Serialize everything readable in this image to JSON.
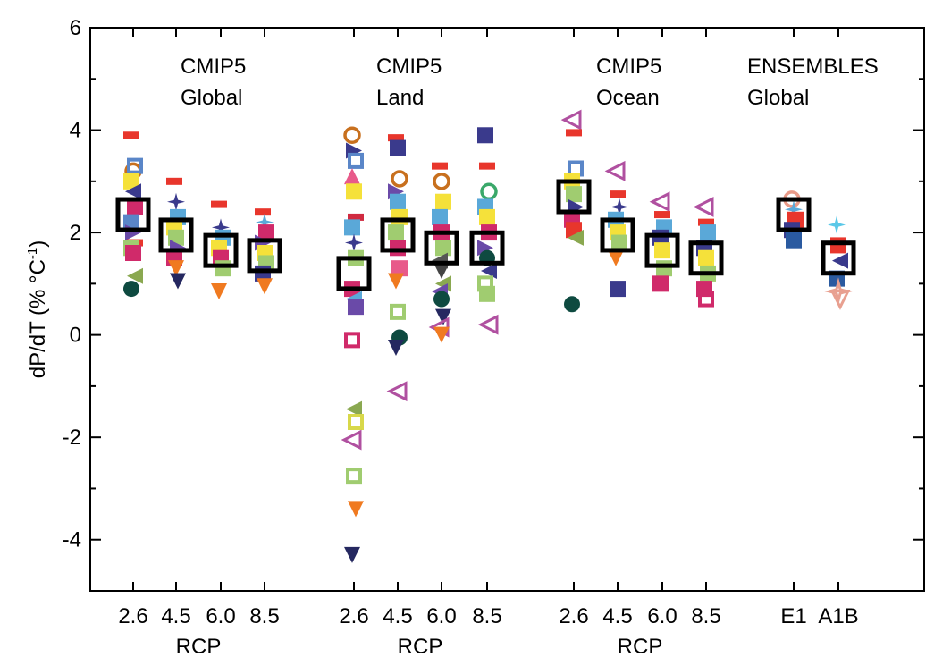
{
  "chart_data": {
    "type": "scatter",
    "ylabel": "dP/dT (% °C",
    "ylabel_sup": "-1",
    "ylabel_close": ")",
    "ylim": [
      -5,
      6
    ],
    "yticks": [
      {
        "v": 6,
        "label": "6"
      },
      {
        "v": 4,
        "label": "4"
      },
      {
        "v": 2,
        "label": "2"
      },
      {
        "v": 0,
        "label": "0"
      },
      {
        "v": -2,
        "label": "-2"
      },
      {
        "v": -4,
        "label": "-4"
      }
    ],
    "groups": [
      {
        "line1": "CMIP5",
        "line2": "Global",
        "axis_title": "RCP"
      },
      {
        "line1": "CMIP5",
        "line2": "Land",
        "axis_title": "RCP"
      },
      {
        "line1": "CMIP5",
        "line2": "Ocean",
        "axis_title": "RCP"
      },
      {
        "line1": "ENSEMBLES",
        "line2": "Global",
        "axis_title": ""
      }
    ],
    "categories": [
      {
        "label": "2.6",
        "group": 0
      },
      {
        "label": "4.5",
        "group": 0
      },
      {
        "label": "6.0",
        "group": 0
      },
      {
        "label": "8.5",
        "group": 0
      },
      {
        "label": "2.6",
        "group": 1
      },
      {
        "label": "4.5",
        "group": 1
      },
      {
        "label": "6.0",
        "group": 1
      },
      {
        "label": "8.5",
        "group": 1
      },
      {
        "label": "2.6",
        "group": 2
      },
      {
        "label": "4.5",
        "group": 2
      },
      {
        "label": "6.0",
        "group": 2
      },
      {
        "label": "8.5",
        "group": 2
      },
      {
        "label": "E1",
        "group": 3
      },
      {
        "label": "A1B",
        "group": 3
      }
    ],
    "ensemble_mean": [
      2.35,
      1.95,
      1.65,
      1.55,
      1.2,
      1.95,
      1.7,
      1.7,
      2.7,
      1.95,
      1.65,
      1.5,
      2.35,
      1.5
    ],
    "model_points": [
      [
        {
          "y": 3.9,
          "m": "dash",
          "c": "#e8362c"
        },
        {
          "y": 3.2,
          "m": "circle-open",
          "c": "#c8701e"
        },
        {
          "y": 3.3,
          "m": "square-open",
          "c": "#5a86c8"
        },
        {
          "y": 3.0,
          "m": "square",
          "c": "#f5e13a"
        },
        {
          "y": 2.8,
          "m": "tri-left",
          "c": "#3a3a8c"
        },
        {
          "y": 2.5,
          "m": "square",
          "c": "#d02a6a"
        },
        {
          "y": 2.2,
          "m": "square",
          "c": "#5a86c8"
        },
        {
          "y": 2.0,
          "m": "tri-right",
          "c": "#6a4aa8"
        },
        {
          "y": 1.8,
          "m": "dash",
          "c": "#e8362c"
        },
        {
          "y": 1.7,
          "m": "square",
          "c": "#a0cc70"
        },
        {
          "y": 1.6,
          "m": "square",
          "c": "#d02a6a"
        },
        {
          "y": 1.15,
          "m": "tri-left",
          "c": "#8aa850"
        },
        {
          "y": 0.9,
          "m": "circle",
          "c": "#0e4a40"
        }
      ],
      [
        {
          "y": 3.0,
          "m": "dash",
          "c": "#e8362c"
        },
        {
          "y": 2.6,
          "m": "star",
          "c": "#3a3a8c"
        },
        {
          "y": 2.3,
          "m": "square",
          "c": "#5aa8d8"
        },
        {
          "y": 2.1,
          "m": "square",
          "c": "#f5e13a"
        },
        {
          "y": 1.9,
          "m": "square",
          "c": "#a0cc70"
        },
        {
          "y": 1.7,
          "m": "tri-right",
          "c": "#6a4aa8"
        },
        {
          "y": 1.5,
          "m": "square",
          "c": "#d02a6a"
        },
        {
          "y": 1.3,
          "m": "tri-down",
          "c": "#f07a20"
        },
        {
          "y": 1.05,
          "m": "tri-down",
          "c": "#252860"
        }
      ],
      [
        {
          "y": 2.55,
          "m": "dash",
          "c": "#e8362c"
        },
        {
          "y": 2.1,
          "m": "star",
          "c": "#3a3a8c"
        },
        {
          "y": 1.9,
          "m": "square",
          "c": "#5aa8d8"
        },
        {
          "y": 1.7,
          "m": "square",
          "c": "#f5e13a"
        },
        {
          "y": 1.5,
          "m": "square",
          "c": "#d02a6a"
        },
        {
          "y": 1.3,
          "m": "square",
          "c": "#a0cc70"
        },
        {
          "y": 0.85,
          "m": "tri-down",
          "c": "#f07a20"
        }
      ],
      [
        {
          "y": 2.4,
          "m": "dash",
          "c": "#e8362c"
        },
        {
          "y": 2.2,
          "m": "star",
          "c": "#5aa8d8"
        },
        {
          "y": 2.0,
          "m": "square",
          "c": "#d02a6a"
        },
        {
          "y": 1.8,
          "m": "tri-right",
          "c": "#6a4aa8"
        },
        {
          "y": 1.6,
          "m": "square",
          "c": "#f5e13a"
        },
        {
          "y": 1.4,
          "m": "square",
          "c": "#a0cc70"
        },
        {
          "y": 1.2,
          "m": "square",
          "c": "#3a3a8c"
        },
        {
          "y": 0.95,
          "m": "tri-down",
          "c": "#f07a20"
        }
      ],
      [
        {
          "y": 3.9,
          "m": "circle-open",
          "c": "#c8701e"
        },
        {
          "y": 3.6,
          "m": "tri-right",
          "c": "#3a3a8c"
        },
        {
          "y": 3.4,
          "m": "square-open",
          "c": "#5a86c8"
        },
        {
          "y": 3.1,
          "m": "triangle",
          "c": "#e85a8a"
        },
        {
          "y": 2.8,
          "m": "square",
          "c": "#f5e13a"
        },
        {
          "y": 2.3,
          "m": "dash",
          "c": "#d02a40"
        },
        {
          "y": 2.1,
          "m": "square",
          "c": "#5aa8d8"
        },
        {
          "y": 1.8,
          "m": "star",
          "c": "#3a3a8c"
        },
        {
          "y": 1.5,
          "m": "square",
          "c": "#a0cc70"
        },
        {
          "y": 0.9,
          "m": "square",
          "c": "#d02a6a"
        },
        {
          "y": 0.7,
          "m": "tri-left",
          "c": "#5aa8d8"
        },
        {
          "y": 0.55,
          "m": "square",
          "c": "#6a4aa8"
        },
        {
          "y": -0.1,
          "m": "square-open",
          "c": "#d02a6a"
        },
        {
          "y": -1.45,
          "m": "tri-left",
          "c": "#8aa850"
        },
        {
          "y": -1.7,
          "m": "square-open",
          "c": "#d8d84a"
        },
        {
          "y": -2.05,
          "m": "tri-left-open",
          "c": "#b050a0"
        },
        {
          "y": -2.75,
          "m": "square-open",
          "c": "#a0cc70"
        },
        {
          "y": -3.4,
          "m": "tri-down",
          "c": "#f07a20"
        },
        {
          "y": -4.3,
          "m": "tri-down",
          "c": "#252860"
        }
      ],
      [
        {
          "y": 3.85,
          "m": "dash",
          "c": "#e8362c"
        },
        {
          "y": 3.65,
          "m": "square",
          "c": "#3a3a8c"
        },
        {
          "y": 3.05,
          "m": "circle-open",
          "c": "#c8701e"
        },
        {
          "y": 2.8,
          "m": "tri-right",
          "c": "#6a4aa8"
        },
        {
          "y": 2.6,
          "m": "square",
          "c": "#5aa8d8"
        },
        {
          "y": 2.3,
          "m": "square",
          "c": "#f5e13a"
        },
        {
          "y": 2.0,
          "m": "square",
          "c": "#a0cc70"
        },
        {
          "y": 1.7,
          "m": "square",
          "c": "#d02a6a"
        },
        {
          "y": 1.3,
          "m": "square",
          "c": "#e85a8a"
        },
        {
          "y": 1.05,
          "m": "tri-down",
          "c": "#f07a20"
        },
        {
          "y": 0.45,
          "m": "square-open",
          "c": "#a0cc70"
        },
        {
          "y": -0.05,
          "m": "circle",
          "c": "#0e4a40"
        },
        {
          "y": -0.25,
          "m": "tri-down",
          "c": "#252860"
        },
        {
          "y": -1.1,
          "m": "tri-left-open",
          "c": "#b050a0"
        }
      ],
      [
        {
          "y": 3.3,
          "m": "dash",
          "c": "#e8362c"
        },
        {
          "y": 3.0,
          "m": "circle-open",
          "c": "#c8701e"
        },
        {
          "y": 2.6,
          "m": "square",
          "c": "#f5e13a"
        },
        {
          "y": 2.3,
          "m": "square",
          "c": "#5aa8d8"
        },
        {
          "y": 2.0,
          "m": "square",
          "c": "#d02a6a"
        },
        {
          "y": 1.7,
          "m": "square",
          "c": "#a0cc70"
        },
        {
          "y": 1.45,
          "m": "tri-left",
          "c": "#555555"
        },
        {
          "y": 1.25,
          "m": "tri-down",
          "c": "#444444"
        },
        {
          "y": 1.0,
          "m": "tri-left",
          "c": "#8aa850"
        },
        {
          "y": 0.85,
          "m": "tri-left",
          "c": "#6a4aa8"
        },
        {
          "y": 0.7,
          "m": "circle",
          "c": "#0e4a40"
        },
        {
          "y": 0.35,
          "m": "tri-down",
          "c": "#252860"
        },
        {
          "y": 0.15,
          "m": "tri-left-open",
          "c": "#b050a0"
        },
        {
          "y": 0.0,
          "m": "tri-down",
          "c": "#f07a20"
        }
      ],
      [
        {
          "y": 3.9,
          "m": "square",
          "c": "#3a3a8c"
        },
        {
          "y": 3.3,
          "m": "dash",
          "c": "#e8362c"
        },
        {
          "y": 2.8,
          "m": "circle-open",
          "c": "#3aa86a"
        },
        {
          "y": 2.5,
          "m": "square",
          "c": "#5aa8d8"
        },
        {
          "y": 2.3,
          "m": "square",
          "c": "#f5e13a"
        },
        {
          "y": 2.0,
          "m": "square",
          "c": "#d02a6a"
        },
        {
          "y": 1.7,
          "m": "tri-right",
          "c": "#6a4aa8"
        },
        {
          "y": 1.5,
          "m": "circle",
          "c": "#0e4a40"
        },
        {
          "y": 1.25,
          "m": "tri-left",
          "c": "#3a3a8c"
        },
        {
          "y": 1.0,
          "m": "square-open",
          "c": "#a0cc70"
        },
        {
          "y": 0.8,
          "m": "square",
          "c": "#a0cc70"
        },
        {
          "y": 0.2,
          "m": "tri-left-open",
          "c": "#b050a0"
        }
      ],
      [
        {
          "y": 4.2,
          "m": "tri-left-open",
          "c": "#b050a0"
        },
        {
          "y": 3.95,
          "m": "dash",
          "c": "#e8362c"
        },
        {
          "y": 3.25,
          "m": "square-open",
          "c": "#5a86c8"
        },
        {
          "y": 3.0,
          "m": "square",
          "c": "#f5e13a"
        },
        {
          "y": 2.75,
          "m": "square",
          "c": "#a0cc70"
        },
        {
          "y": 2.5,
          "m": "tri-right",
          "c": "#3a3a8c"
        },
        {
          "y": 2.25,
          "m": "square",
          "c": "#d02a6a"
        },
        {
          "y": 2.05,
          "m": "square",
          "c": "#e8362c"
        },
        {
          "y": 1.9,
          "m": "tri-left",
          "c": "#8aa850"
        },
        {
          "y": 0.6,
          "m": "circle",
          "c": "#0e4a40"
        }
      ],
      [
        {
          "y": 3.2,
          "m": "tri-left-open",
          "c": "#b050a0"
        },
        {
          "y": 2.75,
          "m": "dash",
          "c": "#e8362c"
        },
        {
          "y": 2.5,
          "m": "star",
          "c": "#3a3a8c"
        },
        {
          "y": 2.25,
          "m": "square",
          "c": "#5aa8d8"
        },
        {
          "y": 2.0,
          "m": "square",
          "c": "#f5e13a"
        },
        {
          "y": 1.8,
          "m": "square",
          "c": "#a0cc70"
        },
        {
          "y": 1.5,
          "m": "tri-down",
          "c": "#f07a20"
        },
        {
          "y": 0.9,
          "m": "square",
          "c": "#3a3a8c"
        }
      ],
      [
        {
          "y": 2.6,
          "m": "tri-left-open",
          "c": "#b050a0"
        },
        {
          "y": 2.35,
          "m": "dash",
          "c": "#e8362c"
        },
        {
          "y": 2.1,
          "m": "square",
          "c": "#5aa8d8"
        },
        {
          "y": 1.9,
          "m": "square",
          "c": "#3a3a8c"
        },
        {
          "y": 1.65,
          "m": "square",
          "c": "#f5e13a"
        },
        {
          "y": 1.3,
          "m": "square",
          "c": "#a0cc70"
        },
        {
          "y": 1.0,
          "m": "square",
          "c": "#d02a6a"
        }
      ],
      [
        {
          "y": 2.5,
          "m": "tri-left-open",
          "c": "#b050a0"
        },
        {
          "y": 2.2,
          "m": "dash",
          "c": "#e8362c"
        },
        {
          "y": 2.0,
          "m": "square",
          "c": "#5aa8d8"
        },
        {
          "y": 1.7,
          "m": "square",
          "c": "#3a3a8c"
        },
        {
          "y": 1.5,
          "m": "square",
          "c": "#f5e13a"
        },
        {
          "y": 1.2,
          "m": "square",
          "c": "#a0cc70"
        },
        {
          "y": 0.9,
          "m": "square",
          "c": "#d02a6a"
        },
        {
          "y": 0.7,
          "m": "square-open",
          "c": "#d02a6a"
        }
      ],
      [
        {
          "y": 2.65,
          "m": "circle-open",
          "c": "#e89a88"
        },
        {
          "y": 2.45,
          "m": "star",
          "c": "#5aa8d8"
        },
        {
          "y": 2.25,
          "m": "square",
          "c": "#e8362c"
        },
        {
          "y": 2.05,
          "m": "square",
          "c": "#3a3a8c"
        },
        {
          "y": 1.85,
          "m": "square",
          "c": "#2a5aa0"
        }
      ],
      [
        {
          "y": 2.15,
          "m": "star",
          "c": "#5ac8e8"
        },
        {
          "y": 1.75,
          "m": "square",
          "c": "#e8362c"
        },
        {
          "y": 1.45,
          "m": "tri-left",
          "c": "#3a3a8c"
        },
        {
          "y": 1.1,
          "m": "square",
          "c": "#2a5aa0"
        },
        {
          "y": 0.85,
          "m": "star-open",
          "c": "#e8a090"
        },
        {
          "y": 0.7,
          "m": "tri-down-open",
          "c": "#e8a090"
        }
      ]
    ],
    "grid": false,
    "legend": "none"
  }
}
